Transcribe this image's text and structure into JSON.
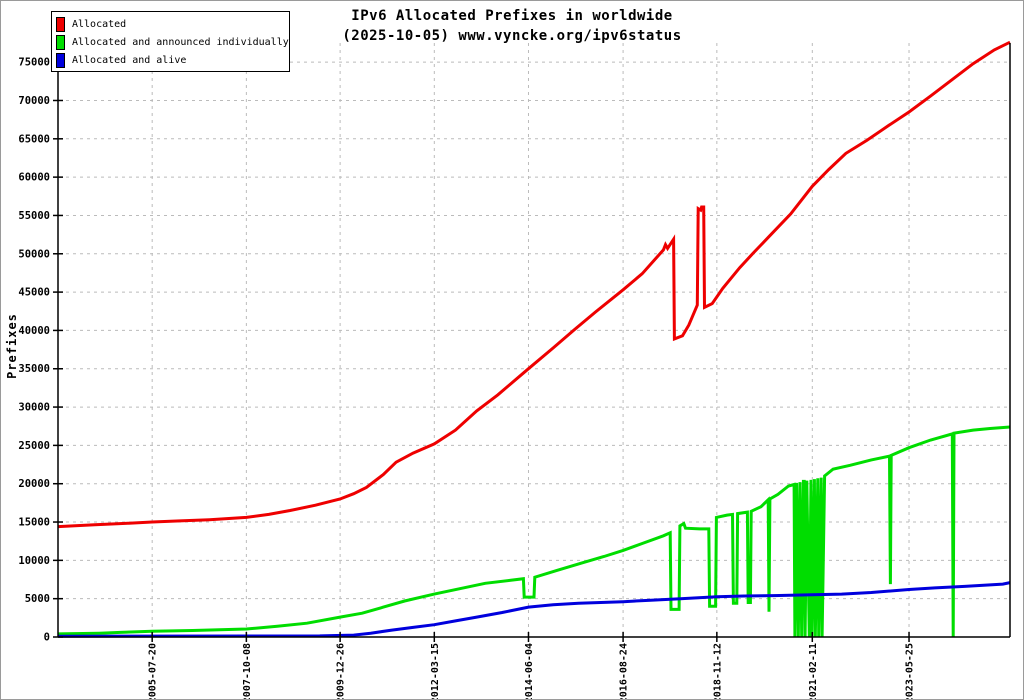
{
  "page": {
    "background": "#ffffff",
    "frame_color": "#9a9a9a"
  },
  "chart_data": {
    "type": "line",
    "title_line1": "IPv6 Allocated Prefixes in worldwide",
    "title_line2": "(2025-10-05) www.vyncke.org/ipv6status",
    "ylabel": "Prefixes",
    "grid": true,
    "legend_position": "top-left",
    "x_axis": {
      "min_year": 2003.33,
      "max_year": 2025.77,
      "ticks": [
        {
          "label": "2005-07-20",
          "year": 2005.55
        },
        {
          "label": "2007-10-08",
          "year": 2007.77
        },
        {
          "label": "2009-12-26",
          "year": 2009.98
        },
        {
          "label": "2012-03-15",
          "year": 2012.2
        },
        {
          "label": "2014-06-04",
          "year": 2014.42
        },
        {
          "label": "2016-08-24",
          "year": 2016.65
        },
        {
          "label": "2018-11-12",
          "year": 2018.86
        },
        {
          "label": "2021-02-11",
          "year": 2021.11
        },
        {
          "label": "2023-05-25",
          "year": 2023.39
        }
      ]
    },
    "y_axis": {
      "min": 0,
      "max": 77500,
      "tick_step": 5000,
      "ticks": [
        0,
        5000,
        10000,
        15000,
        20000,
        25000,
        30000,
        35000,
        40000,
        45000,
        50000,
        55000,
        60000,
        65000,
        70000,
        75000
      ]
    },
    "series": [
      {
        "name": "Allocated",
        "color": "#ee0000",
        "points": [
          [
            2003.33,
            14400
          ],
          [
            2004.2,
            14650
          ],
          [
            2005.0,
            14850
          ],
          [
            2005.55,
            15000
          ],
          [
            2006.2,
            15150
          ],
          [
            2006.9,
            15300
          ],
          [
            2007.77,
            15600
          ],
          [
            2008.3,
            16000
          ],
          [
            2008.8,
            16500
          ],
          [
            2009.4,
            17200
          ],
          [
            2009.98,
            18000
          ],
          [
            2010.3,
            18700
          ],
          [
            2010.6,
            19500
          ],
          [
            2011.0,
            21200
          ],
          [
            2011.3,
            22800
          ],
          [
            2011.7,
            24000
          ],
          [
            2012.2,
            25200
          ],
          [
            2012.7,
            27000
          ],
          [
            2013.2,
            29500
          ],
          [
            2013.7,
            31600
          ],
          [
            2014.42,
            35000
          ],
          [
            2015.0,
            37700
          ],
          [
            2015.5,
            40100
          ],
          [
            2016.0,
            42400
          ],
          [
            2016.65,
            45300
          ],
          [
            2017.1,
            47400
          ],
          [
            2017.6,
            50500
          ],
          [
            2017.65,
            51200
          ],
          [
            2017.7,
            50700
          ],
          [
            2017.84,
            51900
          ],
          [
            2017.86,
            38900
          ],
          [
            2018.05,
            39300
          ],
          [
            2018.2,
            40700
          ],
          [
            2018.4,
            43300
          ],
          [
            2018.42,
            55900
          ],
          [
            2018.48,
            55700
          ],
          [
            2018.5,
            56100
          ],
          [
            2018.55,
            56100
          ],
          [
            2018.57,
            43000
          ],
          [
            2018.75,
            43500
          ],
          [
            2019.0,
            45500
          ],
          [
            2019.4,
            48200
          ],
          [
            2019.72,
            50100
          ],
          [
            2020.1,
            52300
          ],
          [
            2020.6,
            55200
          ],
          [
            2021.11,
            58800
          ],
          [
            2021.5,
            61000
          ],
          [
            2021.9,
            63100
          ],
          [
            2022.4,
            64800
          ],
          [
            2022.9,
            66700
          ],
          [
            2023.39,
            68500
          ],
          [
            2023.9,
            70600
          ],
          [
            2024.4,
            72700
          ],
          [
            2024.9,
            74800
          ],
          [
            2025.4,
            76600
          ],
          [
            2025.77,
            77600
          ]
        ]
      },
      {
        "name": "Allocated and announced individually",
        "color": "#00dd00",
        "points": [
          [
            2003.33,
            400
          ],
          [
            2004.3,
            500
          ],
          [
            2004.8,
            600
          ],
          [
            2005.55,
            750
          ],
          [
            2006.5,
            850
          ],
          [
            2007.77,
            1050
          ],
          [
            2008.5,
            1400
          ],
          [
            2009.2,
            1800
          ],
          [
            2009.98,
            2600
          ],
          [
            2010.5,
            3100
          ],
          [
            2011.0,
            3900
          ],
          [
            2011.5,
            4700
          ],
          [
            2012.2,
            5600
          ],
          [
            2012.8,
            6300
          ],
          [
            2013.4,
            7000
          ],
          [
            2014.0,
            7400
          ],
          [
            2014.3,
            7600
          ],
          [
            2014.32,
            5200
          ],
          [
            2014.55,
            5200
          ],
          [
            2014.57,
            7800
          ],
          [
            2015.1,
            8700
          ],
          [
            2015.7,
            9700
          ],
          [
            2016.2,
            10500
          ],
          [
            2016.65,
            11300
          ],
          [
            2017.1,
            12200
          ],
          [
            2017.6,
            13200
          ],
          [
            2017.76,
            13600
          ],
          [
            2017.78,
            3600
          ],
          [
            2017.97,
            3600
          ],
          [
            2017.99,
            14500
          ],
          [
            2018.08,
            14800
          ],
          [
            2018.12,
            14200
          ],
          [
            2018.45,
            14100
          ],
          [
            2018.67,
            14100
          ],
          [
            2018.69,
            4000
          ],
          [
            2018.83,
            4000
          ],
          [
            2018.85,
            15600
          ],
          [
            2019.1,
            15900
          ],
          [
            2019.23,
            16000
          ],
          [
            2019.25,
            4400
          ],
          [
            2019.33,
            4400
          ],
          [
            2019.35,
            16100
          ],
          [
            2019.58,
            16300
          ],
          [
            2019.6,
            4500
          ],
          [
            2019.65,
            4500
          ],
          [
            2019.67,
            16400
          ],
          [
            2019.9,
            17000
          ],
          [
            2020.07,
            17900
          ],
          [
            2020.09,
            3300
          ],
          [
            2020.11,
            18000
          ],
          [
            2020.3,
            18600
          ],
          [
            2020.55,
            19700
          ],
          [
            2020.68,
            19900
          ],
          [
            2020.7,
            0
          ],
          [
            2020.74,
            20100
          ],
          [
            2020.78,
            0
          ],
          [
            2020.82,
            20200
          ],
          [
            2020.86,
            0
          ],
          [
            2020.9,
            20300
          ],
          [
            2020.92,
            20300
          ],
          [
            2020.94,
            0
          ],
          [
            2020.98,
            20400
          ],
          [
            2021.04,
            0
          ],
          [
            2021.08,
            20500
          ],
          [
            2021.1,
            0
          ],
          [
            2021.16,
            20600
          ],
          [
            2021.18,
            0
          ],
          [
            2021.24,
            20700
          ],
          [
            2021.26,
            0
          ],
          [
            2021.32,
            20800
          ],
          [
            2021.34,
            0
          ],
          [
            2021.4,
            21000
          ],
          [
            2021.6,
            21900
          ],
          [
            2022.0,
            22400
          ],
          [
            2022.5,
            23100
          ],
          [
            2022.93,
            23600
          ],
          [
            2022.95,
            6900
          ],
          [
            2022.97,
            23700
          ],
          [
            2023.39,
            24700
          ],
          [
            2023.9,
            25700
          ],
          [
            2024.41,
            26500
          ],
          [
            2024.43,
            0
          ],
          [
            2024.45,
            26600
          ],
          [
            2024.9,
            27000
          ],
          [
            2025.3,
            27200
          ],
          [
            2025.77,
            27400
          ]
        ]
      },
      {
        "name": "Allocated and alive",
        "color": "#0000dd",
        "points": [
          [
            2003.33,
            100
          ],
          [
            2009.5,
            150
          ],
          [
            2010.3,
            250
          ],
          [
            2010.7,
            500
          ],
          [
            2011.2,
            900
          ],
          [
            2011.7,
            1250
          ],
          [
            2012.2,
            1600
          ],
          [
            2012.7,
            2100
          ],
          [
            2013.2,
            2600
          ],
          [
            2013.8,
            3200
          ],
          [
            2014.42,
            3900
          ],
          [
            2015.0,
            4200
          ],
          [
            2015.6,
            4400
          ],
          [
            2016.65,
            4600
          ],
          [
            2017.3,
            4800
          ],
          [
            2018.0,
            5000
          ],
          [
            2018.86,
            5250
          ],
          [
            2019.5,
            5350
          ],
          [
            2020.2,
            5400
          ],
          [
            2021.11,
            5500
          ],
          [
            2021.8,
            5600
          ],
          [
            2022.5,
            5800
          ],
          [
            2023.39,
            6200
          ],
          [
            2024.0,
            6400
          ],
          [
            2024.7,
            6600
          ],
          [
            2025.3,
            6800
          ],
          [
            2025.6,
            6900
          ],
          [
            2025.77,
            7100
          ]
        ]
      }
    ]
  }
}
